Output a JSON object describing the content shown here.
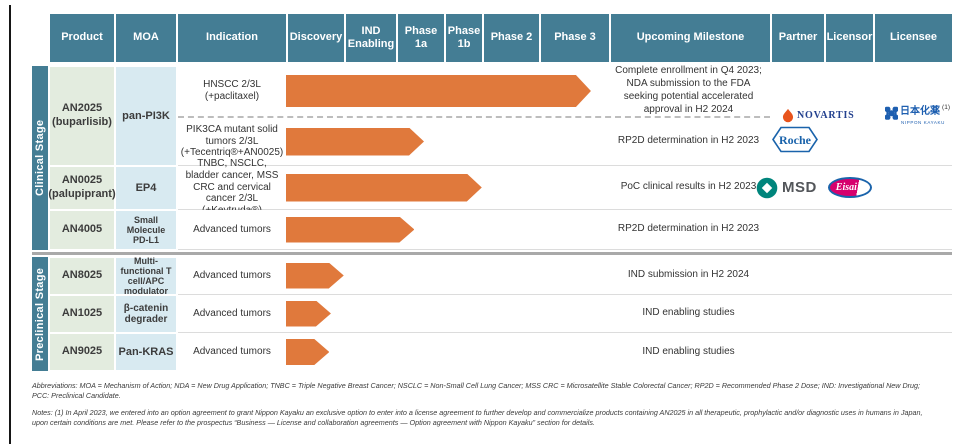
{
  "header": {
    "columns": {
      "product": "Product",
      "moa": "MOA",
      "indication": "Indication",
      "discovery": "Discovery",
      "ind": "IND Enabling",
      "p1a": "Phase 1a",
      "p1b": "Phase 1b",
      "p2": "Phase 2",
      "p3": "Phase 3",
      "milestone": "Upcoming Milestone",
      "partner": "Partner",
      "licensor": "Licensor",
      "licensee": "Licensee"
    }
  },
  "stages": {
    "clinical": "Clinical Stage",
    "preclinical": "Preclinical Stage"
  },
  "pipeline": {
    "an2025": {
      "product": "AN2025",
      "product_sub": "(buparlisib)",
      "moa": "pan-PI3K",
      "hnscc": {
        "indication": "HNSCC 2/3L (+paclitaxel)",
        "milestone": "Complete enrollment in Q4 2023; NDA submission to the FDA seeking potential accelerated approval in H2 2024",
        "arrow_pct": "95",
        "reached_phase": "Phase 3"
      },
      "pik3ca": {
        "indication": "PIK3CA mutant solid tumors 2/3L (+Tecentriq®+AN0025)",
        "milestone": "RP2D determination in H2 2023",
        "arrow_pct": "43",
        "reached_phase": "Phase 1a",
        "partner": "Roche"
      },
      "licensor": "NOVARTIS",
      "licensee_kanji": "日本化薬",
      "licensee_ref": "(1)",
      "licensee_name": "NIPPON KAYAKU"
    },
    "an0025": {
      "product": "AN0025",
      "product_sub": "(palupiprant)",
      "moa": "EP4",
      "indication": "TNBC, NSCLC, bladder cancer, MSS CRC and cervical cancer 2/3L (+Keytruda®)",
      "milestone": "PoC clinical results in H2 2023",
      "arrow_pct": "61",
      "reached_phase": "Phase 1b",
      "partner": "MSD",
      "licensor": "Eisai"
    },
    "an4005": {
      "product": "AN4005",
      "moa": "Small Molecule PD-L1",
      "indication": "Advanced tumors",
      "milestone": "RP2D determination in H2 2023",
      "arrow_pct": "40",
      "reached_phase": "Phase 1a"
    },
    "an8025": {
      "product": "AN8025",
      "moa": "Multi-functional T cell/APC modulator",
      "indication": "Advanced tumors",
      "milestone": "IND submission in H2 2024",
      "arrow_pct": "18",
      "reached_phase": "Discovery"
    },
    "an1025": {
      "product": "AN1025",
      "moa": "β-catenin degrader",
      "indication": "Advanced tumors",
      "milestone": "IND enabling studies",
      "arrow_pct": "14",
      "reached_phase": "Discovery"
    },
    "an9025": {
      "product": "AN9025",
      "moa": "Pan-KRAS",
      "indication": "Advanced tumors",
      "milestone": "IND enabling studies",
      "arrow_pct": "13.5",
      "reached_phase": "Discovery"
    }
  },
  "footnotes": {
    "abbreviations_1": "Abbreviations: MOA = Mechanism of Action; NDA = New Drug Application; TNBC = Triple Negative Breast Cancer; NSCLC = Non-Small Cell Lung Cancer; MSS CRC = Microsatellite Stable Colorectal Cancer; RP2D = Recommended Phase 2 Dose; IND: Investigational New Drug;",
    "abbreviations_2": "PCC: Preclinical Candidate.",
    "note_1": "Notes: (1) In April 2023, we entered into an option agreement to grant Nippon Kayaku an exclusive option to enter into a license agreement to further develop and commercialize products containing AN2025 in all therapeutic, prophylactic and/or diagnostic uses in humans in Japan,",
    "note_2": "upon certain conditions are met. Please refer to the prospectus “Business — License and collaboration agreements — Option agreement with Nippon Kayaku” section for details."
  },
  "colors": {
    "teal": "#447D94",
    "arrow": "#E0793C",
    "product_bg": "#E3ECDF",
    "moa_bg": "#D8EAF1",
    "divider_gray": "#A9A9A9",
    "row_line": "#DCDCDC",
    "dash": "#BDBDBD",
    "novartis_blue": "#23418F",
    "novartis_flame": "#E8541D",
    "roche_blue": "#1A63AB",
    "msd_teal": "#00857C",
    "msd_text": "#53565A",
    "eisai_magenta": "#D6006D",
    "eisai_blue": "#1A63AB",
    "nk_blue": "#1E5FB0",
    "note_text": "#3A3A3A"
  }
}
